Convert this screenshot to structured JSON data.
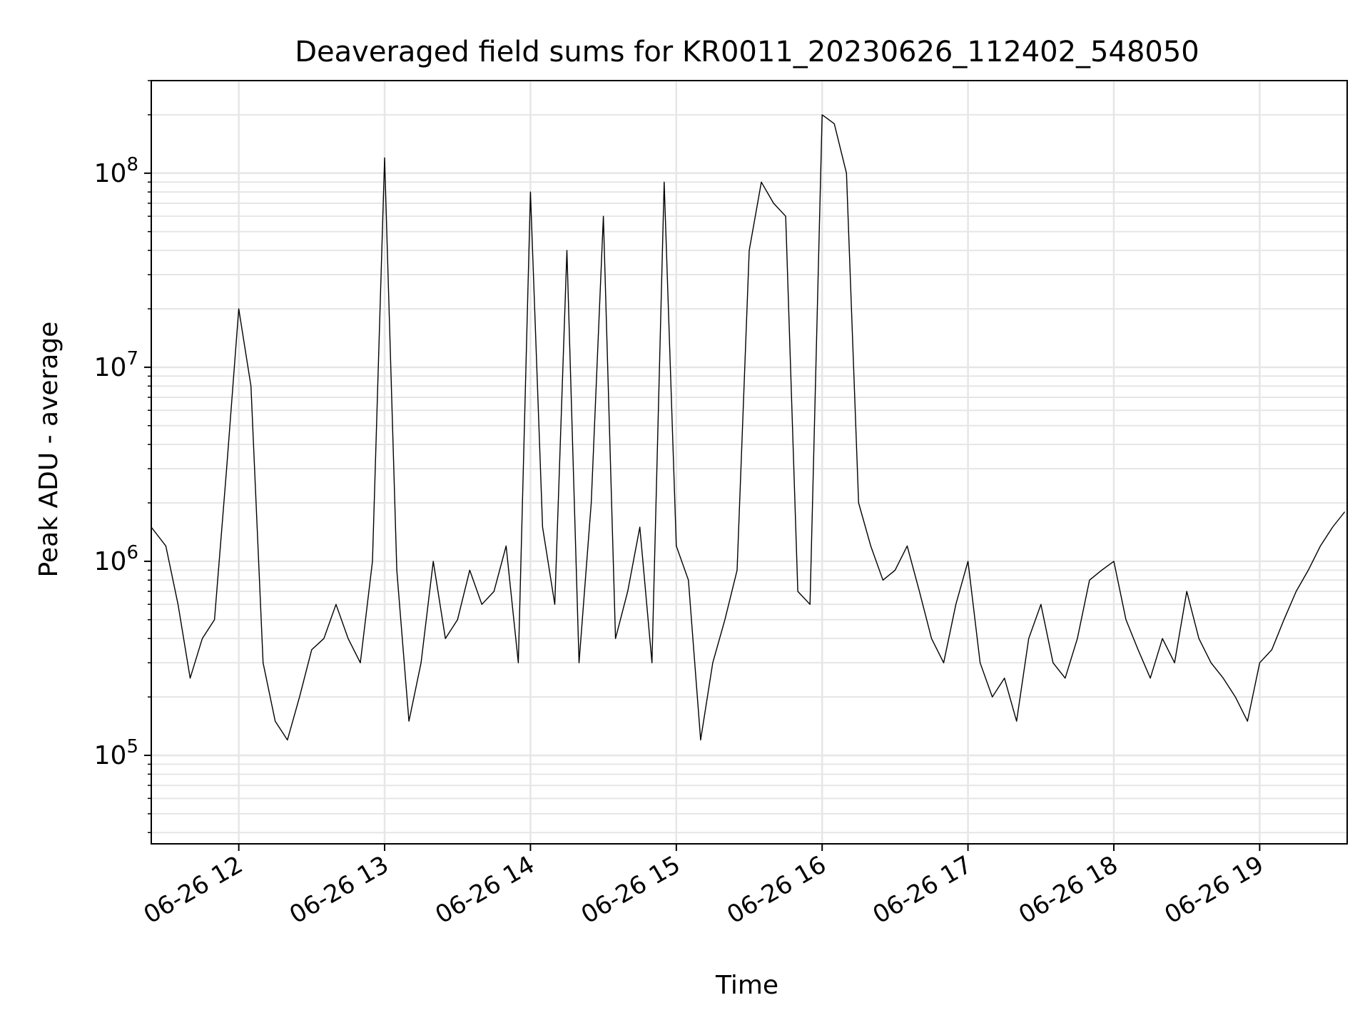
{
  "chart_data": {
    "type": "line",
    "title": "Deaveraged field sums for KR0011_20230626_112402_548050",
    "xlabel": "Time",
    "ylabel": "Peak ADU - average",
    "yscale": "log",
    "ylim": [
      35000,
      300000000
    ],
    "xlim": [
      "2023-06-26 11:24",
      "2023-06-26 19:36"
    ],
    "grid": true,
    "x_ticks": [
      {
        "value": "2023-06-26 12:00",
        "label": "06-26 12"
      },
      {
        "value": "2023-06-26 13:00",
        "label": "06-26 13"
      },
      {
        "value": "2023-06-26 14:00",
        "label": "06-26 14"
      },
      {
        "value": "2023-06-26 15:00",
        "label": "06-26 15"
      },
      {
        "value": "2023-06-26 16:00",
        "label": "06-26 16"
      },
      {
        "value": "2023-06-26 17:00",
        "label": "06-26 17"
      },
      {
        "value": "2023-06-26 18:00",
        "label": "06-26 18"
      },
      {
        "value": "2023-06-26 19:00",
        "label": "06-26 19"
      }
    ],
    "y_ticks": [
      {
        "value": 100000,
        "label": "10^5"
      },
      {
        "value": 1000000,
        "label": "10^6"
      },
      {
        "value": 10000000,
        "label": "10^7"
      },
      {
        "value": 100000000,
        "label": "10^8"
      }
    ],
    "line_color": "#000000",
    "grid_color": "#e6e6e6",
    "series": [
      {
        "x": [
          "2023-06-26 11:24",
          "2023-06-26 11:30",
          "2023-06-26 11:35",
          "2023-06-26 11:40",
          "2023-06-26 11:45",
          "2023-06-26 11:50",
          "2023-06-26 11:55",
          "2023-06-26 12:00",
          "2023-06-26 12:05",
          "2023-06-26 12:10",
          "2023-06-26 12:15",
          "2023-06-26 12:20",
          "2023-06-26 12:25",
          "2023-06-26 12:30",
          "2023-06-26 12:35",
          "2023-06-26 12:40",
          "2023-06-26 12:45",
          "2023-06-26 12:50",
          "2023-06-26 12:55",
          "2023-06-26 13:00",
          "2023-06-26 13:05",
          "2023-06-26 13:10",
          "2023-06-26 13:15",
          "2023-06-26 13:20",
          "2023-06-26 13:25",
          "2023-06-26 13:30",
          "2023-06-26 13:35",
          "2023-06-26 13:40",
          "2023-06-26 13:45",
          "2023-06-26 13:50",
          "2023-06-26 13:55",
          "2023-06-26 14:00",
          "2023-06-26 14:05",
          "2023-06-26 14:10",
          "2023-06-26 14:15",
          "2023-06-26 14:20",
          "2023-06-26 14:25",
          "2023-06-26 14:30",
          "2023-06-26 14:35",
          "2023-06-26 14:40",
          "2023-06-26 14:45",
          "2023-06-26 14:50",
          "2023-06-26 14:55",
          "2023-06-26 15:00",
          "2023-06-26 15:05",
          "2023-06-26 15:10",
          "2023-06-26 15:15",
          "2023-06-26 15:20",
          "2023-06-26 15:25",
          "2023-06-26 15:30",
          "2023-06-26 15:35",
          "2023-06-26 15:40",
          "2023-06-26 15:45",
          "2023-06-26 15:50",
          "2023-06-26 15:55",
          "2023-06-26 16:00",
          "2023-06-26 16:05",
          "2023-06-26 16:10",
          "2023-06-26 16:15",
          "2023-06-26 16:20",
          "2023-06-26 16:25",
          "2023-06-26 16:30",
          "2023-06-26 16:35",
          "2023-06-26 16:40",
          "2023-06-26 16:45",
          "2023-06-26 16:50",
          "2023-06-26 16:55",
          "2023-06-26 17:00",
          "2023-06-26 17:05",
          "2023-06-26 17:10",
          "2023-06-26 17:15",
          "2023-06-26 17:20",
          "2023-06-26 17:25",
          "2023-06-26 17:30",
          "2023-06-26 17:35",
          "2023-06-26 17:40",
          "2023-06-26 17:45",
          "2023-06-26 17:50",
          "2023-06-26 17:55",
          "2023-06-26 18:00",
          "2023-06-26 18:05",
          "2023-06-26 18:10",
          "2023-06-26 18:15",
          "2023-06-26 18:20",
          "2023-06-26 18:25",
          "2023-06-26 18:30",
          "2023-06-26 18:35",
          "2023-06-26 18:40",
          "2023-06-26 18:45",
          "2023-06-26 18:50",
          "2023-06-26 18:55",
          "2023-06-26 19:00",
          "2023-06-26 19:05",
          "2023-06-26 19:10",
          "2023-06-26 19:15",
          "2023-06-26 19:20",
          "2023-06-26 19:25",
          "2023-06-26 19:30",
          "2023-06-26 19:35"
        ],
        "y": [
          1500000,
          1200000,
          600000,
          250000,
          400000,
          500000,
          3000000,
          20000000,
          8000000,
          300000,
          150000,
          120000,
          200000,
          350000,
          400000,
          600000,
          400000,
          300000,
          1000000,
          120000000,
          900000,
          150000,
          300000,
          1000000,
          400000,
          500000,
          900000,
          600000,
          700000,
          1200000,
          300000,
          80000000,
          1500000,
          600000,
          40000000,
          300000,
          2000000,
          60000000,
          400000,
          700000,
          1500000,
          300000,
          90000000,
          1200000,
          800000,
          120000,
          300000,
          500000,
          900000,
          40000000,
          90000000,
          70000000,
          60000000,
          700000,
          600000,
          200000000,
          180000000,
          100000000,
          2000000,
          1200000,
          800000,
          900000,
          1200000,
          700000,
          400000,
          300000,
          600000,
          1000000,
          300000,
          200000,
          250000,
          150000,
          400000,
          600000,
          300000,
          250000,
          400000,
          800000,
          900000,
          1000000,
          500000,
          350000,
          250000,
          400000,
          300000,
          700000,
          400000,
          300000,
          250000,
          200000,
          150000,
          300000,
          350000,
          500000,
          700000,
          900000,
          1200000,
          1500000,
          1800000
        ]
      }
    ]
  }
}
